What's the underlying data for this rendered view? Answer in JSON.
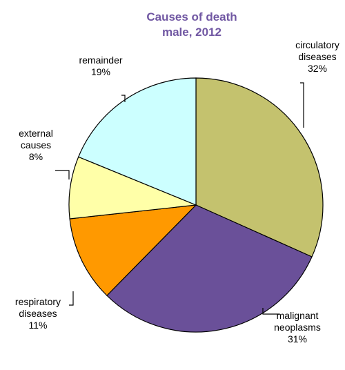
{
  "chart_data": {
    "type": "pie",
    "title": [
      "Causes of death",
      "male, 2012"
    ],
    "title_color": "#7158A3",
    "slices": [
      {
        "name": "circulatory diseases",
        "label_lines": [
          "circulatory",
          "diseases"
        ],
        "pct_label": "32%",
        "value": 32,
        "color": "#C4C26E"
      },
      {
        "name": "malignant neoplasms",
        "label_lines": [
          "malignant",
          "neoplasms"
        ],
        "pct_label": "31%",
        "value": 31,
        "color": "#6A5099"
      },
      {
        "name": "respiratory diseases",
        "label_lines": [
          "respiratory",
          "diseases"
        ],
        "pct_label": "11%",
        "value": 11,
        "color": "#FF9900"
      },
      {
        "name": "external causes",
        "label_lines": [
          "external",
          "causes"
        ],
        "pct_label": "8%",
        "value": 8,
        "color": "#FFFFA8"
      },
      {
        "name": "remainder",
        "label_lines": [
          "remainder"
        ],
        "pct_label": "19%",
        "value": 19,
        "color": "#CCFFFF"
      }
    ],
    "start": "12 o'clock",
    "direction": "clockwise"
  }
}
